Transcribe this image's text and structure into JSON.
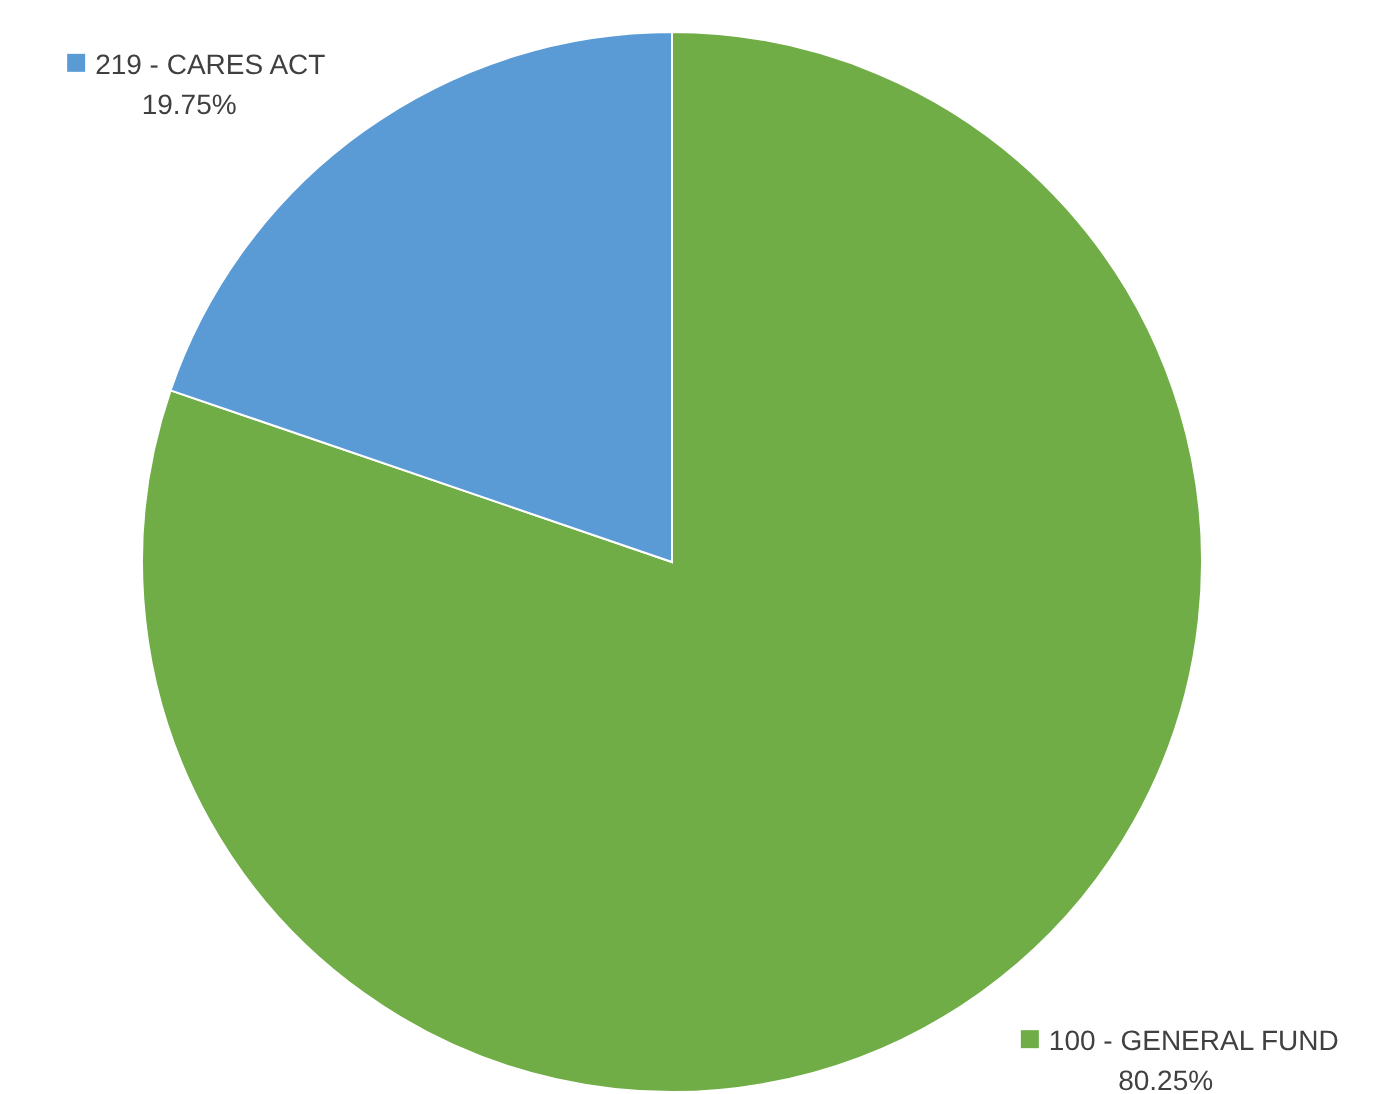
{
  "chart_data": {
    "type": "pie",
    "categories": [
      "100 - GENERAL FUND",
      "219 - CARES ACT"
    ],
    "values": [
      80.25,
      19.75
    ],
    "colors": [
      "#70ad47",
      "#5b9bd5"
    ],
    "value_labels": [
      "80.25%",
      "19.75%"
    ]
  }
}
